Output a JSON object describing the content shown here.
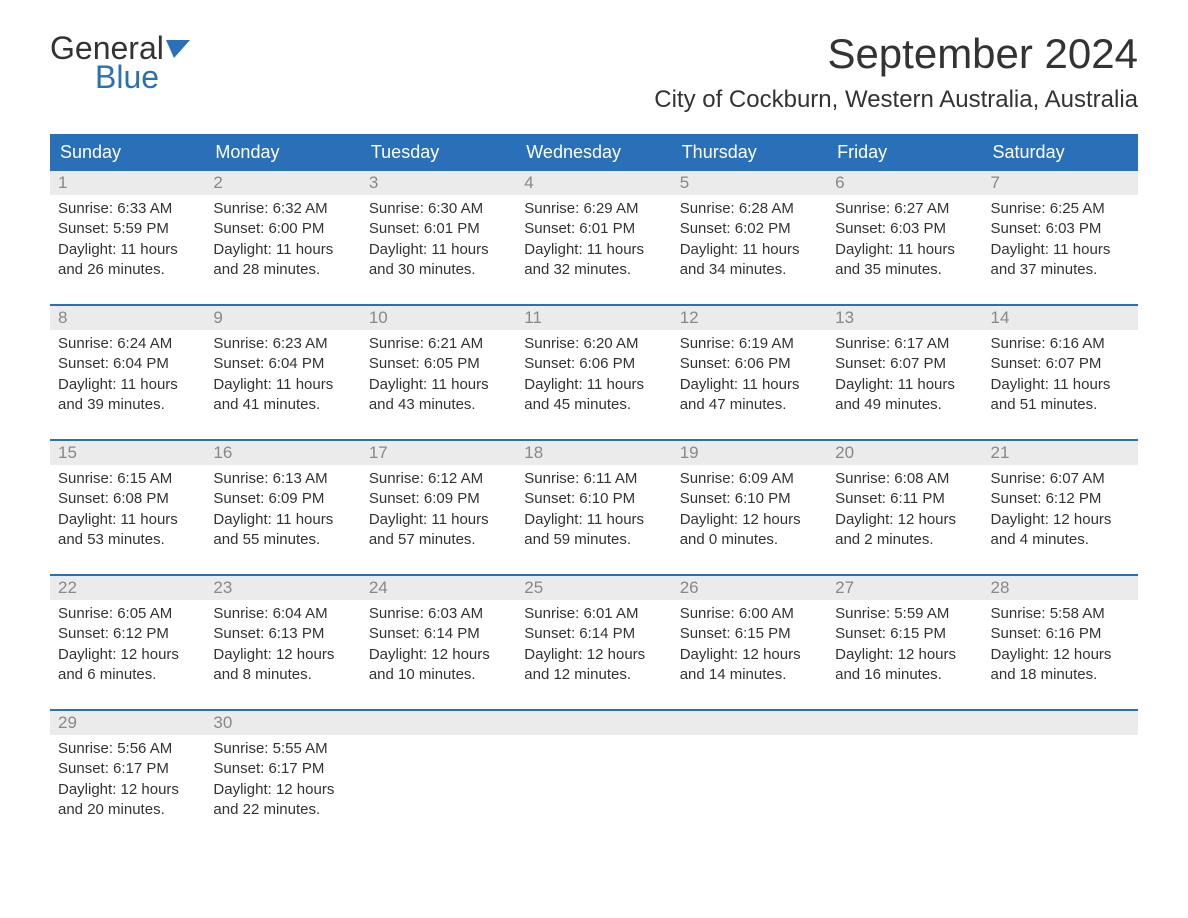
{
  "logo": {
    "general": "General",
    "blue": "Blue"
  },
  "title": "September 2024",
  "location": "City of Cockburn, Western Australia, Australia",
  "colors": {
    "header_bg": "#2a70b8",
    "header_text": "#ffffff",
    "daynum_bg": "#ebebeb",
    "daynum_text": "#888888",
    "body_text": "#333333",
    "logo_blue": "#2a70b8",
    "border": "#2a70b8",
    "background": "#ffffff"
  },
  "day_headers": [
    "Sunday",
    "Monday",
    "Tuesday",
    "Wednesday",
    "Thursday",
    "Friday",
    "Saturday"
  ],
  "weeks": [
    [
      {
        "num": "1",
        "sunrise": "Sunrise: 6:33 AM",
        "sunset": "Sunset: 5:59 PM",
        "daylight": "Daylight: 11 hours and 26 minutes."
      },
      {
        "num": "2",
        "sunrise": "Sunrise: 6:32 AM",
        "sunset": "Sunset: 6:00 PM",
        "daylight": "Daylight: 11 hours and 28 minutes."
      },
      {
        "num": "3",
        "sunrise": "Sunrise: 6:30 AM",
        "sunset": "Sunset: 6:01 PM",
        "daylight": "Daylight: 11 hours and 30 minutes."
      },
      {
        "num": "4",
        "sunrise": "Sunrise: 6:29 AM",
        "sunset": "Sunset: 6:01 PM",
        "daylight": "Daylight: 11 hours and 32 minutes."
      },
      {
        "num": "5",
        "sunrise": "Sunrise: 6:28 AM",
        "sunset": "Sunset: 6:02 PM",
        "daylight": "Daylight: 11 hours and 34 minutes."
      },
      {
        "num": "6",
        "sunrise": "Sunrise: 6:27 AM",
        "sunset": "Sunset: 6:03 PM",
        "daylight": "Daylight: 11 hours and 35 minutes."
      },
      {
        "num": "7",
        "sunrise": "Sunrise: 6:25 AM",
        "sunset": "Sunset: 6:03 PM",
        "daylight": "Daylight: 11 hours and 37 minutes."
      }
    ],
    [
      {
        "num": "8",
        "sunrise": "Sunrise: 6:24 AM",
        "sunset": "Sunset: 6:04 PM",
        "daylight": "Daylight: 11 hours and 39 minutes."
      },
      {
        "num": "9",
        "sunrise": "Sunrise: 6:23 AM",
        "sunset": "Sunset: 6:04 PM",
        "daylight": "Daylight: 11 hours and 41 minutes."
      },
      {
        "num": "10",
        "sunrise": "Sunrise: 6:21 AM",
        "sunset": "Sunset: 6:05 PM",
        "daylight": "Daylight: 11 hours and 43 minutes."
      },
      {
        "num": "11",
        "sunrise": "Sunrise: 6:20 AM",
        "sunset": "Sunset: 6:06 PM",
        "daylight": "Daylight: 11 hours and 45 minutes."
      },
      {
        "num": "12",
        "sunrise": "Sunrise: 6:19 AM",
        "sunset": "Sunset: 6:06 PM",
        "daylight": "Daylight: 11 hours and 47 minutes."
      },
      {
        "num": "13",
        "sunrise": "Sunrise: 6:17 AM",
        "sunset": "Sunset: 6:07 PM",
        "daylight": "Daylight: 11 hours and 49 minutes."
      },
      {
        "num": "14",
        "sunrise": "Sunrise: 6:16 AM",
        "sunset": "Sunset: 6:07 PM",
        "daylight": "Daylight: 11 hours and 51 minutes."
      }
    ],
    [
      {
        "num": "15",
        "sunrise": "Sunrise: 6:15 AM",
        "sunset": "Sunset: 6:08 PM",
        "daylight": "Daylight: 11 hours and 53 minutes."
      },
      {
        "num": "16",
        "sunrise": "Sunrise: 6:13 AM",
        "sunset": "Sunset: 6:09 PM",
        "daylight": "Daylight: 11 hours and 55 minutes."
      },
      {
        "num": "17",
        "sunrise": "Sunrise: 6:12 AM",
        "sunset": "Sunset: 6:09 PM",
        "daylight": "Daylight: 11 hours and 57 minutes."
      },
      {
        "num": "18",
        "sunrise": "Sunrise: 6:11 AM",
        "sunset": "Sunset: 6:10 PM",
        "daylight": "Daylight: 11 hours and 59 minutes."
      },
      {
        "num": "19",
        "sunrise": "Sunrise: 6:09 AM",
        "sunset": "Sunset: 6:10 PM",
        "daylight": "Daylight: 12 hours and 0 minutes."
      },
      {
        "num": "20",
        "sunrise": "Sunrise: 6:08 AM",
        "sunset": "Sunset: 6:11 PM",
        "daylight": "Daylight: 12 hours and 2 minutes."
      },
      {
        "num": "21",
        "sunrise": "Sunrise: 6:07 AM",
        "sunset": "Sunset: 6:12 PM",
        "daylight": "Daylight: 12 hours and 4 minutes."
      }
    ],
    [
      {
        "num": "22",
        "sunrise": "Sunrise: 6:05 AM",
        "sunset": "Sunset: 6:12 PM",
        "daylight": "Daylight: 12 hours and 6 minutes."
      },
      {
        "num": "23",
        "sunrise": "Sunrise: 6:04 AM",
        "sunset": "Sunset: 6:13 PM",
        "daylight": "Daylight: 12 hours and 8 minutes."
      },
      {
        "num": "24",
        "sunrise": "Sunrise: 6:03 AM",
        "sunset": "Sunset: 6:14 PM",
        "daylight": "Daylight: 12 hours and 10 minutes."
      },
      {
        "num": "25",
        "sunrise": "Sunrise: 6:01 AM",
        "sunset": "Sunset: 6:14 PM",
        "daylight": "Daylight: 12 hours and 12 minutes."
      },
      {
        "num": "26",
        "sunrise": "Sunrise: 6:00 AM",
        "sunset": "Sunset: 6:15 PM",
        "daylight": "Daylight: 12 hours and 14 minutes."
      },
      {
        "num": "27",
        "sunrise": "Sunrise: 5:59 AM",
        "sunset": "Sunset: 6:15 PM",
        "daylight": "Daylight: 12 hours and 16 minutes."
      },
      {
        "num": "28",
        "sunrise": "Sunrise: 5:58 AM",
        "sunset": "Sunset: 6:16 PM",
        "daylight": "Daylight: 12 hours and 18 minutes."
      }
    ],
    [
      {
        "num": "29",
        "sunrise": "Sunrise: 5:56 AM",
        "sunset": "Sunset: 6:17 PM",
        "daylight": "Daylight: 12 hours and 20 minutes."
      },
      {
        "num": "30",
        "sunrise": "Sunrise: 5:55 AM",
        "sunset": "Sunset: 6:17 PM",
        "daylight": "Daylight: 12 hours and 22 minutes."
      },
      {
        "num": "",
        "sunrise": "",
        "sunset": "",
        "daylight": ""
      },
      {
        "num": "",
        "sunrise": "",
        "sunset": "",
        "daylight": ""
      },
      {
        "num": "",
        "sunrise": "",
        "sunset": "",
        "daylight": ""
      },
      {
        "num": "",
        "sunrise": "",
        "sunset": "",
        "daylight": ""
      },
      {
        "num": "",
        "sunrise": "",
        "sunset": "",
        "daylight": ""
      }
    ]
  ]
}
